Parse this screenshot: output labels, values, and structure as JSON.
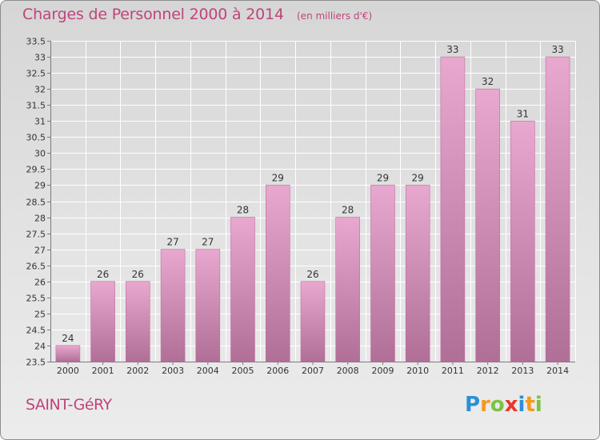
{
  "title": "Charges de Personnel 2000 à 2014",
  "unit_note": "(en milliers d'€)",
  "commune": "SAINT-GéRY",
  "logo": {
    "text": "Proxiti",
    "letters": [
      {
        "ch": "P",
        "color": "#2b8fd6"
      },
      {
        "ch": "r",
        "color": "#f29a1f"
      },
      {
        "ch": "o",
        "color": "#7cc242"
      },
      {
        "ch": "x",
        "color": "#e8372c"
      },
      {
        "ch": "i",
        "color": "#2b8fd6"
      },
      {
        "ch": "t",
        "color": "#f29a1f"
      },
      {
        "ch": "i",
        "color": "#7cc242"
      }
    ]
  },
  "colors": {
    "accent": "#c0447a",
    "bar_light": "#e8a8cf",
    "bar_dark": "#b06f97",
    "bar_edge": "#c46ea6"
  },
  "chart_data": {
    "type": "bar",
    "title": "Charges de Personnel 2000 à 2014",
    "subtitle": "(en milliers d'€)",
    "categories": [
      "2000",
      "2001",
      "2002",
      "2003",
      "2004",
      "2005",
      "2006",
      "2007",
      "2008",
      "2009",
      "2010",
      "2011",
      "2012",
      "2013",
      "2014"
    ],
    "values": [
      24,
      26,
      26,
      27,
      27,
      28,
      29,
      26,
      28,
      29,
      29,
      33,
      32,
      31,
      33
    ],
    "data_labels": [
      "24",
      "26",
      "26",
      "27",
      "27",
      "28",
      "29",
      "26",
      "28",
      "29",
      "29",
      "33",
      "32",
      "31",
      "33"
    ],
    "ylim": [
      23.5,
      33.5
    ],
    "yticks": [
      23.5,
      24,
      24.5,
      25,
      25.5,
      26,
      26.5,
      27,
      27.5,
      28,
      28.5,
      29,
      29.5,
      30,
      30.5,
      31,
      31.5,
      32,
      32.5,
      33,
      33.5
    ],
    "ytick_labels": [
      "23.5",
      "24",
      "24.5",
      "25",
      "25.5",
      "26",
      "26.5",
      "27",
      "27.5",
      "28",
      "28.5",
      "29",
      "29.5",
      "30",
      "30.5",
      "31",
      "31.5",
      "32",
      "32.5",
      "33",
      "33.5"
    ],
    "xlabel": "",
    "ylabel": "",
    "grid": true,
    "legend": "none"
  }
}
